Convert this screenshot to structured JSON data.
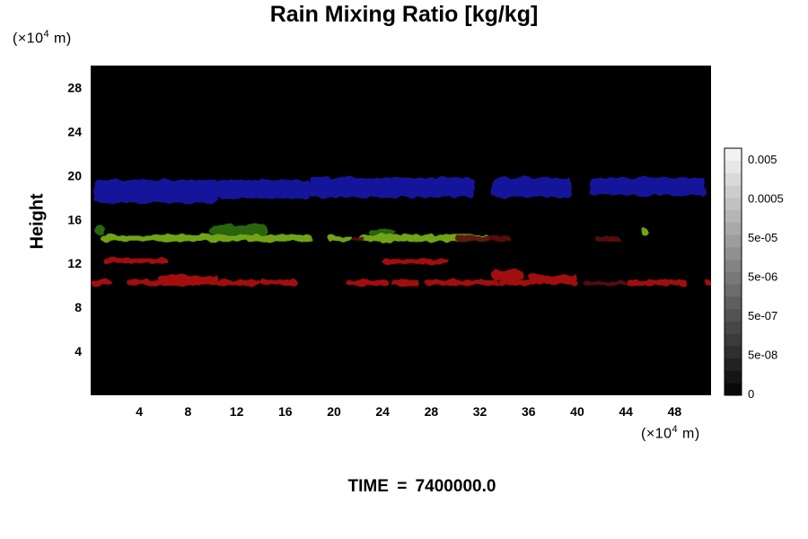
{
  "chart_data": {
    "type": "heatmap",
    "title": "Rain Mixing Ratio [kg/kg]",
    "ylabel": "Height",
    "xlabel": "",
    "x_unit_prefix": "(×10",
    "x_unit_exp": "4",
    "x_unit_suffix": " m)",
    "y_unit_prefix": "(×10",
    "y_unit_exp": "4",
    "y_unit_suffix": " m)",
    "xlim": [
      0,
      51
    ],
    "ylim": [
      0,
      30
    ],
    "x_ticks": [
      4,
      8,
      12,
      16,
      20,
      24,
      28,
      32,
      36,
      40,
      44,
      48
    ],
    "x_tick_labels": [
      "4",
      "8",
      "12",
      "16",
      "20",
      "24",
      "28",
      "32",
      "36",
      "40",
      "44",
      "48"
    ],
    "y_ticks": [
      4,
      8,
      12,
      16,
      20,
      24,
      28
    ],
    "y_tick_labels": [
      "4",
      "8",
      "12",
      "16",
      "20",
      "24",
      "28"
    ],
    "background_color": "#000000",
    "colorbar": {
      "tick_labels": [
        "0.005",
        "0.0005",
        "5e-05",
        "5e-06",
        "5e-07",
        "5e-08",
        "0"
      ],
      "levels": 20
    },
    "bands": [
      {
        "color": "#1a1aa8",
        "segments": [
          {
            "x0": 0.3,
            "x1": 10.5,
            "y0": 17.5,
            "y1": 19.6
          },
          {
            "x0": 10.5,
            "x1": 18.0,
            "y0": 17.9,
            "y1": 19.6
          },
          {
            "x0": 18.0,
            "x1": 31.5,
            "y0": 18.0,
            "y1": 19.8
          },
          {
            "x0": 33.0,
            "x1": 39.5,
            "y0": 18.0,
            "y1": 19.8
          },
          {
            "x0": 41.0,
            "x1": 50.5,
            "y0": 18.2,
            "y1": 19.8
          }
        ]
      },
      {
        "color": "#7ab21a",
        "segments": [
          {
            "x0": 0.8,
            "x1": 18.2,
            "y0": 14.0,
            "y1": 14.6
          },
          {
            "x0": 19.5,
            "x1": 21.5,
            "y0": 14.0,
            "y1": 14.5
          },
          {
            "x0": 22.0,
            "x1": 32.8,
            "y0": 14.0,
            "y1": 14.6
          },
          {
            "x0": 45.2,
            "x1": 45.8,
            "y0": 14.6,
            "y1": 15.2
          }
        ]
      },
      {
        "color": "#2e6e10",
        "segments": [
          {
            "x0": 9.8,
            "x1": 14.5,
            "y0": 14.6,
            "y1": 15.5
          },
          {
            "x0": 22.8,
            "x1": 25.0,
            "y0": 14.6,
            "y1": 15.1
          },
          {
            "x0": 0.4,
            "x1": 1.1,
            "y0": 14.6,
            "y1": 15.5
          }
        ]
      },
      {
        "color": "#b01010",
        "segments": [
          {
            "x0": 0.0,
            "x1": 1.7,
            "y0": 10.0,
            "y1": 10.5
          },
          {
            "x0": 3.0,
            "x1": 14.0,
            "y0": 10.0,
            "y1": 10.5
          },
          {
            "x0": 14.0,
            "x1": 17.0,
            "y0": 10.0,
            "y1": 10.5
          },
          {
            "x0": 21.0,
            "x1": 24.5,
            "y0": 10.0,
            "y1": 10.5
          },
          {
            "x0": 24.7,
            "x1": 27.0,
            "y0": 10.0,
            "y1": 10.5
          },
          {
            "x0": 27.5,
            "x1": 33.5,
            "y0": 10.0,
            "y1": 10.5
          },
          {
            "x0": 33.5,
            "x1": 40.0,
            "y0": 10.0,
            "y1": 10.5
          },
          {
            "x0": 44.0,
            "x1": 49.0,
            "y0": 10.0,
            "y1": 10.5
          },
          {
            "x0": 50.5,
            "x1": 51.0,
            "y0": 10.0,
            "y1": 10.5
          },
          {
            "x0": 1.0,
            "x1": 6.3,
            "y0": 12.0,
            "y1": 12.5
          },
          {
            "x0": 24.0,
            "x1": 29.5,
            "y0": 11.9,
            "y1": 12.4
          },
          {
            "x0": 33.0,
            "x1": 35.5,
            "y0": 10.5,
            "y1": 11.4
          },
          {
            "x0": 36.0,
            "x1": 40.0,
            "y0": 10.5,
            "y1": 11.0
          },
          {
            "x0": 5.5,
            "x1": 10.5,
            "y0": 10.5,
            "y1": 10.9
          }
        ]
      },
      {
        "color": "#5a0808",
        "segments": [
          {
            "x0": 30.0,
            "x1": 34.5,
            "y0": 14.0,
            "y1": 14.5
          },
          {
            "x0": 41.5,
            "x1": 43.5,
            "y0": 14.0,
            "y1": 14.4
          },
          {
            "x0": 21.5,
            "x1": 22.5,
            "y0": 14.0,
            "y1": 14.4
          },
          {
            "x0": 40.5,
            "x1": 44.0,
            "y0": 10.0,
            "y1": 10.4
          }
        ]
      }
    ]
  },
  "footer": {
    "time_label": "TIME",
    "time_eq": "=",
    "time_value": "7400000.0"
  }
}
